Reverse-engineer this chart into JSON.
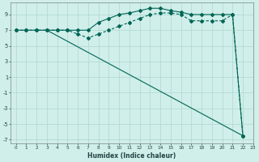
{
  "xlabel": "Humidex (Indice chaleur)",
  "xlim": [
    0,
    23
  ],
  "ylim": [
    -7.5,
    10.5
  ],
  "yticks": [
    -7,
    -5,
    -3,
    -1,
    1,
    3,
    5,
    7,
    9
  ],
  "xticks": [
    0,
    1,
    2,
    3,
    4,
    5,
    6,
    7,
    8,
    9,
    10,
    11,
    12,
    13,
    14,
    15,
    16,
    17,
    18,
    19,
    20,
    21,
    22,
    23
  ],
  "bg_color": "#d0eeea",
  "grid_color": "#b0d8d0",
  "line_color": "#006655",
  "line1_x": [
    0,
    1,
    2,
    3,
    4,
    5,
    6,
    7,
    8,
    9,
    10,
    11,
    12,
    13,
    14,
    15,
    16,
    17,
    18,
    19,
    20,
    21,
    22
  ],
  "line1_y": [
    7,
    7,
    7,
    7,
    7,
    7,
    7,
    7,
    8,
    8.5,
    9,
    9.2,
    9.5,
    9.8,
    9.8,
    9.5,
    9.3,
    9.0,
    9,
    9,
    9,
    9,
    -6.5
  ],
  "line2_x": [
    0,
    1,
    2,
    3,
    4,
    5,
    6,
    7,
    8,
    9,
    10,
    11,
    12,
    13,
    14,
    15,
    16,
    17,
    18,
    19,
    20,
    21,
    22
  ],
  "line2_y": [
    7,
    7,
    7,
    7,
    7,
    7,
    6.5,
    6.0,
    6.5,
    7,
    7.5,
    8,
    8.5,
    9,
    9.2,
    9.2,
    9.0,
    8.2,
    8.2,
    8.2,
    8.2,
    9,
    -6.5
  ],
  "line3_x": [
    3,
    22
  ],
  "line3_y": [
    7,
    -6.5
  ]
}
